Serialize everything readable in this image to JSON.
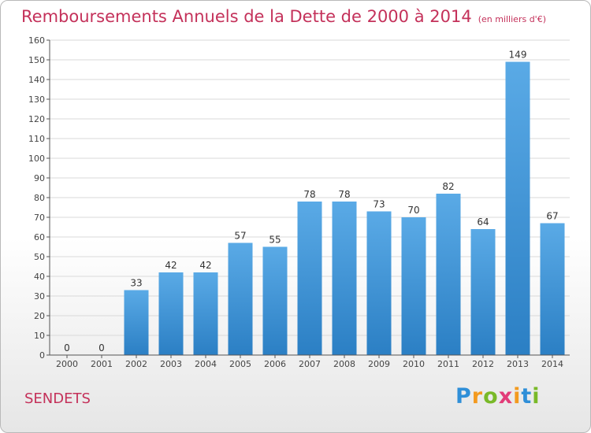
{
  "header": {
    "title": "Remboursements Annuels de la Dette de 2000 à 2014",
    "unit_note": "(en milliers d'€)"
  },
  "footer": {
    "commune": "SENDETS",
    "logo": "Proxiti"
  },
  "colors": {
    "title": "#c4315a",
    "bar_top": "#5aaae6",
    "bar_bottom": "#2b7fc4",
    "grid": "#d9d9d9",
    "axis": "#555555"
  },
  "chart_data": {
    "type": "bar",
    "title": "Remboursements Annuels de la Dette de 2000 à 2014",
    "xlabel": "",
    "ylabel": "",
    "categories": [
      "2000",
      "2001",
      "2002",
      "2003",
      "2004",
      "2005",
      "2006",
      "2007",
      "2008",
      "2009",
      "2010",
      "2011",
      "2012",
      "2013",
      "2014"
    ],
    "values": [
      0,
      0,
      33,
      42,
      42,
      57,
      55,
      78,
      78,
      73,
      70,
      82,
      64,
      149,
      67
    ],
    "ylim": [
      0,
      160
    ],
    "yticks": [
      0,
      10,
      20,
      30,
      40,
      50,
      60,
      70,
      80,
      90,
      100,
      110,
      120,
      130,
      140,
      150,
      160
    ],
    "grid": true,
    "data_labels": true,
    "legend": "none"
  }
}
